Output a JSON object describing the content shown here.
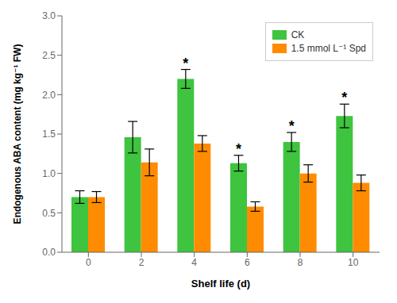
{
  "chart_data": {
    "type": "bar",
    "xlabel": "Shelf life (d)",
    "ylabel": "Endogenous ABA content (mg kg⁻¹ FW)",
    "categories": [
      "0",
      "2",
      "4",
      "6",
      "8",
      "10"
    ],
    "series": [
      {
        "name": "CK",
        "color": "#3EC43E",
        "values": [
          0.7,
          1.46,
          2.2,
          1.13,
          1.4,
          1.73
        ],
        "errors": [
          0.08,
          0.2,
          0.12,
          0.1,
          0.12,
          0.15
        ]
      },
      {
        "name": "1.5 mmol L⁻¹ Spd",
        "color": "#FF8C00",
        "values": [
          0.7,
          1.14,
          1.38,
          0.58,
          1.0,
          0.88
        ],
        "errors": [
          0.07,
          0.17,
          0.1,
          0.06,
          0.11,
          0.1
        ]
      }
    ],
    "ylim": [
      0.0,
      3.0
    ],
    "yticks": [
      {
        "value": 0,
        "label": "0.0"
      },
      0.5,
      {
        "value": 1,
        "label": "1.0"
      },
      1.5,
      {
        "value": 2,
        "label": "2.0"
      },
      2.5,
      {
        "value": 3,
        "label": "3.0"
      }
    ],
    "grid": false,
    "legend": "upper right",
    "annotations": [
      {
        "text": "*",
        "category": "4",
        "series": "CK"
      },
      {
        "text": "*",
        "category": "6",
        "series": "CK"
      },
      {
        "text": "*",
        "category": "8",
        "series": "CK"
      },
      {
        "text": "*",
        "category": "10",
        "series": "CK"
      }
    ]
  }
}
